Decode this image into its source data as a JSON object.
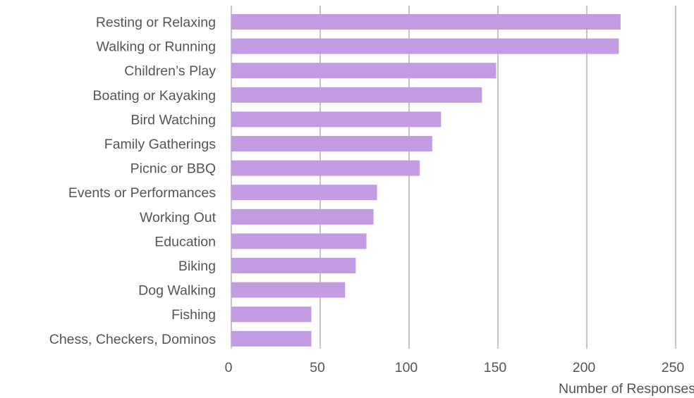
{
  "chart_data": {
    "type": "bar",
    "orientation": "horizontal",
    "title": "",
    "xlabel": "Number of Responses",
    "ylabel": "",
    "xlim": [
      0,
      250
    ],
    "xticks": [
      0,
      50,
      100,
      150,
      200,
      250
    ],
    "grid": "vertical",
    "bar_color": "#c39be3",
    "gridline_color": "#8a8a8a",
    "label_color": "#555555",
    "categories": [
      "Resting or Relaxing",
      "Walking or Running",
      "Children’s Play",
      "Boating or Kayaking",
      "Bird Watching",
      "Family Gatherings",
      "Picnic or BBQ",
      "Events or Performances",
      "Working Out",
      "Education",
      "Biking",
      "Dog Walking",
      "Fishing",
      "Chess, Checkers, Dominos"
    ],
    "values": [
      219,
      218,
      149,
      141,
      118,
      113,
      106,
      82,
      80,
      76,
      70,
      64,
      45,
      45
    ]
  }
}
